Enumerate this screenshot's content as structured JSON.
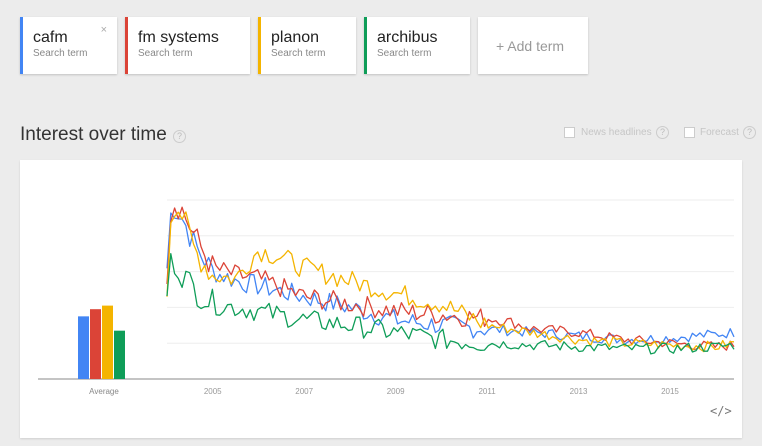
{
  "terms": [
    {
      "name": "cafm",
      "sub": "Search term",
      "color": "#4285f4",
      "close": "×"
    },
    {
      "name": "fm systems",
      "sub": "Search term",
      "color": "#db4437"
    },
    {
      "name": "planon",
      "sub": "Search term",
      "color": "#f4b400"
    },
    {
      "name": "archibus",
      "sub": "Search term",
      "color": "#0f9d58"
    }
  ],
  "add_term": "+ Add term",
  "section": {
    "title": "Interest over time",
    "help": "?",
    "news_label": "News headlines",
    "forecast_label": "Forecast"
  },
  "embed_icon": "</>",
  "chart_data": {
    "type": "line",
    "x_ticks": [
      "2005",
      "2007",
      "2009",
      "2011",
      "2013",
      "2015"
    ],
    "x_range": [
      2004,
      2016.4
    ],
    "y_range": [
      0,
      100
    ],
    "grid": true,
    "average_label": "Average",
    "averages": [
      {
        "name": "cafm",
        "value": 35,
        "color": "#4285f4"
      },
      {
        "name": "fm systems",
        "value": 39,
        "color": "#db4437"
      },
      {
        "name": "planon",
        "value": 41,
        "color": "#f4b400"
      },
      {
        "name": "archibus",
        "value": 27,
        "color": "#0f9d58"
      }
    ],
    "series": [
      {
        "name": "cafm",
        "color": "#4285f4",
        "anchors": [
          [
            2004.0,
            62
          ],
          [
            2004.1,
            98
          ],
          [
            2004.3,
            92
          ],
          [
            2004.6,
            75
          ],
          [
            2005,
            60
          ],
          [
            2005.5,
            55
          ],
          [
            2006,
            52
          ],
          [
            2007,
            46
          ],
          [
            2008,
            40
          ],
          [
            2009,
            33
          ],
          [
            2010,
            30
          ],
          [
            2011,
            28
          ],
          [
            2012,
            26
          ],
          [
            2013,
            24
          ],
          [
            2014,
            22
          ],
          [
            2015,
            23
          ],
          [
            2016,
            25
          ],
          [
            2016.4,
            26
          ]
        ]
      },
      {
        "name": "fm systems",
        "color": "#db4437",
        "anchors": [
          [
            2004.0,
            60
          ],
          [
            2004.1,
            100
          ],
          [
            2004.3,
            96
          ],
          [
            2004.6,
            80
          ],
          [
            2005,
            62
          ],
          [
            2005.5,
            58
          ],
          [
            2006,
            56
          ],
          [
            2007,
            46
          ],
          [
            2008,
            42
          ],
          [
            2009,
            38
          ],
          [
            2010,
            36
          ],
          [
            2011,
            34
          ],
          [
            2011.5,
            32
          ],
          [
            2012,
            28
          ],
          [
            2013,
            26
          ],
          [
            2014,
            22
          ],
          [
            2015,
            20
          ],
          [
            2016,
            18
          ],
          [
            2016.4,
            19
          ]
        ]
      },
      {
        "name": "planon",
        "color": "#f4b400",
        "anchors": [
          [
            2004.0,
            50
          ],
          [
            2004.1,
            100
          ],
          [
            2004.3,
            94
          ],
          [
            2004.6,
            72
          ],
          [
            2005,
            58
          ],
          [
            2005.5,
            56
          ],
          [
            2006,
            72
          ],
          [
            2006.5,
            68
          ],
          [
            2007,
            62
          ],
          [
            2008,
            55
          ],
          [
            2009,
            48
          ],
          [
            2010,
            42
          ],
          [
            2011,
            30
          ],
          [
            2012,
            26
          ],
          [
            2013,
            22
          ],
          [
            2014,
            20
          ],
          [
            2015,
            19
          ],
          [
            2016,
            18
          ],
          [
            2016.4,
            20
          ]
        ]
      },
      {
        "name": "archibus",
        "color": "#0f9d58",
        "anchors": [
          [
            2004.0,
            48
          ],
          [
            2004.1,
            68
          ],
          [
            2004.3,
            60
          ],
          [
            2004.6,
            50
          ],
          [
            2005,
            42
          ],
          [
            2006,
            38
          ],
          [
            2007,
            33
          ],
          [
            2008,
            30
          ],
          [
            2009,
            26
          ],
          [
            2010,
            22
          ],
          [
            2011,
            20
          ],
          [
            2012,
            19
          ],
          [
            2013,
            18
          ],
          [
            2014,
            17
          ],
          [
            2015,
            17
          ],
          [
            2016,
            18
          ],
          [
            2016.4,
            19
          ]
        ]
      }
    ]
  }
}
